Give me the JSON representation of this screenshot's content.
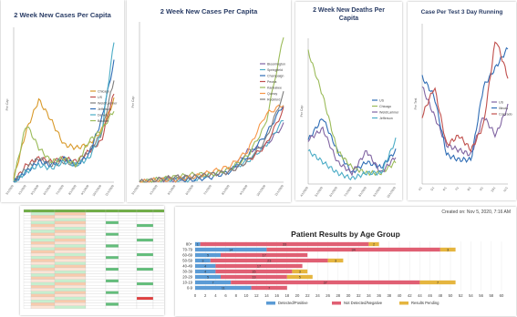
{
  "chart_data": [
    {
      "type": "line",
      "title": "2 Week New Cases Per Capita",
      "ylabel": "Per Cap",
      "x": [
        "3/1/2020",
        "4/1/2020",
        "5/1/2020",
        "6/1/2020",
        "7/1/2020",
        "8/1/2020",
        "9/1/2020",
        "10/1/2020",
        "11/1/2020"
      ],
      "series": [
        {
          "name": "Chicago",
          "color": "#d99a2b",
          "values": [
            2,
            30,
            48,
            36,
            22,
            20,
            22,
            30,
            48
          ]
        },
        {
          "name": "US",
          "color": "#c0504d",
          "values": [
            0,
            10,
            14,
            12,
            14,
            12,
            18,
            24,
            52
          ]
        },
        {
          "name": "Weld/Larimer",
          "color": "#7f7f7f",
          "values": [
            0,
            8,
            14,
            10,
            12,
            10,
            18,
            28,
            60
          ]
        },
        {
          "name": "Jefferson",
          "color": "#2f6db5",
          "values": [
            0,
            6,
            12,
            10,
            14,
            10,
            16,
            36,
            70
          ]
        },
        {
          "name": "Denver",
          "color": "#4bacc6",
          "values": [
            0,
            6,
            10,
            8,
            12,
            10,
            14,
            28,
            82
          ]
        },
        {
          "name": "Boulder",
          "color": "#9bbb59",
          "values": [
            2,
            34,
            20,
            12,
            14,
            10,
            24,
            30,
            42
          ]
        }
      ]
    },
    {
      "type": "line",
      "title": "2 Week New Cases Per Capita",
      "ylabel": "Per Cap",
      "x": [
        "3/1/2020",
        "4/1/2020",
        "5/1/2020",
        "6/1/2020",
        "7/1/2020",
        "8/1/2020",
        "9/1/2020",
        "10/1/2020",
        "11/1/2020"
      ],
      "series": [
        {
          "name": "Bloomington",
          "color": "#8064a2",
          "values": [
            0,
            1,
            1,
            2,
            3,
            4,
            12,
            14,
            22
          ]
        },
        {
          "name": "Springfield",
          "color": "#4bacc6",
          "values": [
            0,
            1,
            1,
            1,
            3,
            5,
            8,
            14,
            24
          ]
        },
        {
          "name": "Champaign",
          "color": "#2f6db5",
          "values": [
            0,
            1,
            1,
            1,
            2,
            4,
            10,
            18,
            30
          ]
        },
        {
          "name": "Peoria",
          "color": "#c0504d",
          "values": [
            0,
            1,
            2,
            2,
            3,
            4,
            8,
            14,
            28
          ]
        },
        {
          "name": "Kankakee",
          "color": "#9bbb59",
          "values": [
            0,
            1,
            2,
            3,
            3,
            5,
            10,
            22,
            56
          ]
        },
        {
          "name": "Quincy",
          "color": "#f79646",
          "values": [
            0,
            1,
            1,
            2,
            4,
            6,
            12,
            26,
            30
          ]
        },
        {
          "name": "Rockford",
          "color": "#7f7f7f",
          "values": [
            0,
            1,
            2,
            2,
            3,
            4,
            8,
            16,
            34
          ]
        }
      ]
    },
    {
      "type": "line",
      "title": "2 Week New Deaths Per Capita",
      "ylabel": "Per Cap",
      "x": [
        "4/1/2020",
        "5/1/2020",
        "6/1/2020",
        "7/1/2020",
        "8/1/2020",
        "9/1/2020",
        "10/1/2020"
      ],
      "series": [
        {
          "name": "US",
          "color": "#2f6db5",
          "values": [
            4,
            6,
            3,
            1,
            2,
            1.5,
            3
          ]
        },
        {
          "name": "Chicago",
          "color": "#9bbb59",
          "values": [
            12,
            8,
            3,
            1.5,
            1,
            1,
            2
          ]
        },
        {
          "name": "Weld/Larimer",
          "color": "#8064a2",
          "values": [
            4,
            5,
            2,
            1,
            3,
            1,
            2.5
          ]
        },
        {
          "name": "Jefferson",
          "color": "#4bacc6",
          "values": [
            3,
            2,
            1,
            0.5,
            1,
            1,
            4
          ]
        }
      ]
    },
    {
      "type": "line",
      "title": "Case Per Test 3 Day Running",
      "ylabel": "Per Test",
      "x": [
        "4/1",
        "5/1",
        "6/1",
        "7/1",
        "8/1",
        "9/1",
        "10/1",
        "11/1"
      ],
      "series": [
        {
          "name": "US",
          "color": "#8064a2",
          "values": [
            20,
            14,
            8,
            7,
            6,
            14,
            10,
            16
          ]
        },
        {
          "name": "Illinois",
          "color": "#2f6db5",
          "values": [
            22,
            18,
            6,
            5,
            5,
            20,
            24,
            28
          ]
        },
        {
          "name": "Colorado",
          "color": "#c0504d",
          "values": [
            14,
            20,
            8,
            10,
            7,
            12,
            30,
            22
          ]
        }
      ]
    },
    {
      "type": "bar",
      "title": "Patient Results by Age Group",
      "annotation": "Created on: Nov 5, 2020, 7:16 AM",
      "categories": [
        "80+",
        "70-79",
        "60-69",
        "50-59",
        "40-49",
        "30-39",
        "20-29",
        "10-19",
        "0-9"
      ],
      "xlim": [
        0,
        60
      ],
      "xticks": [
        0,
        2,
        4,
        6,
        8,
        10,
        12,
        14,
        16,
        18,
        20,
        22,
        24,
        26,
        28,
        30,
        32,
        34,
        36,
        38,
        40,
        42,
        44,
        46,
        48,
        50,
        52,
        54,
        56,
        58,
        60
      ],
      "series": [
        {
          "name": "Detected/Positive",
          "color": "#5b9bd5",
          "values": [
            1,
            14,
            5,
            3,
            4,
            4,
            5,
            7,
            11
          ]
        },
        {
          "name": "Not Detected/Negative",
          "color": "#e05f73",
          "values": [
            33,
            34,
            17,
            23,
            17,
            15,
            13,
            37,
            7
          ]
        },
        {
          "name": "Results Pending",
          "color": "#e5b53f",
          "values": [
            2,
            3,
            0,
            3,
            0,
            3,
            5,
            7,
            0
          ]
        }
      ],
      "legend": "bottom"
    }
  ],
  "spreadsheet": {
    "note": ""
  }
}
